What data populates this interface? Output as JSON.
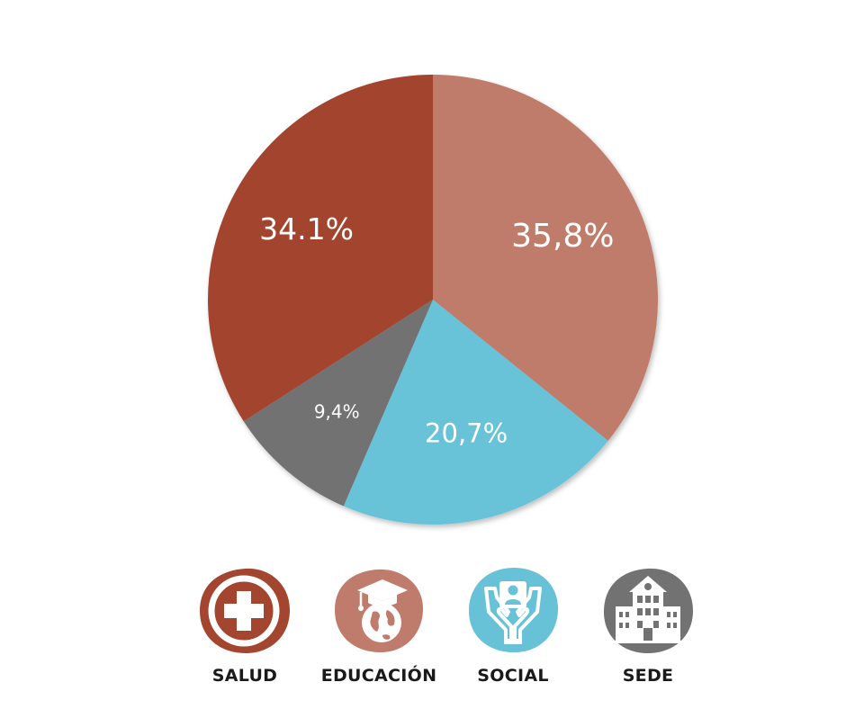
{
  "chart_data": {
    "type": "pie",
    "title": "",
    "categories": [
      "SALUD",
      "EDUCACIÓN",
      "SOCIAL",
      "SEDE"
    ],
    "values": [
      34.1,
      35.8,
      20.7,
      9.4
    ],
    "slice_labels": [
      "34.1%",
      "35,8%",
      "20,7%",
      "9,4%"
    ],
    "colors": [
      "#a3452f",
      "#bf7b6b",
      "#67c2d8",
      "#727272"
    ],
    "legend": "bottom"
  },
  "legend": {
    "items": [
      {
        "label": "SALUD",
        "icon": "medical-cross-icon",
        "color": "#a3452f"
      },
      {
        "label": "EDUCACIÓN",
        "icon": "graduation-globe-icon",
        "color": "#bf7b6b"
      },
      {
        "label": "SOCIAL",
        "icon": "hands-person-icon",
        "color": "#67c2d8"
      },
      {
        "label": "SEDE",
        "icon": "building-icon",
        "color": "#727272"
      }
    ]
  }
}
